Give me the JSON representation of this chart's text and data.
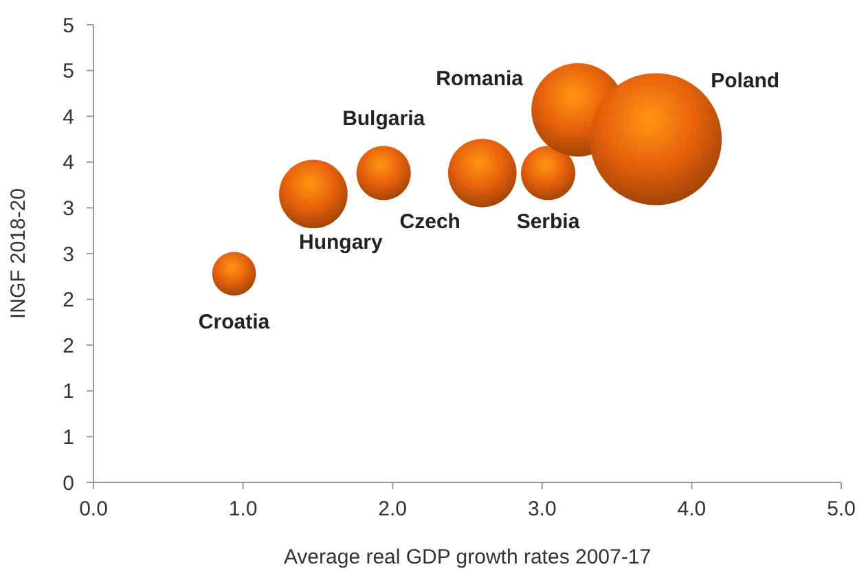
{
  "chart_data": {
    "type": "bubble",
    "xlabel": "Average real GDP growth rates 2007-17",
    "ylabel": "INGF 2018-20",
    "xlim": [
      0,
      5
    ],
    "xticks": [
      {
        "value": 0,
        "label": "0.0"
      },
      {
        "value": 1,
        "label": "1.0"
      },
      {
        "value": 2,
        "label": "2.0"
      },
      {
        "value": 3,
        "label": "3.0"
      },
      {
        "value": 4,
        "label": "4.0"
      },
      {
        "value": 5,
        "label": "5.0"
      }
    ],
    "ylim": [
      0,
      5
    ],
    "yticks": [
      0,
      {
        "value": 0.5,
        "label": "1"
      },
      1,
      {
        "value": 1.5,
        "label": "2"
      },
      2,
      {
        "value": 2.5,
        "label": "3"
      },
      3,
      {
        "value": 3.5,
        "label": "4"
      },
      4,
      {
        "value": 4.5,
        "label": "5"
      },
      5
    ],
    "grid": false,
    "series": [
      {
        "name": "Croatia",
        "color": "#e8620c",
        "x": [
          0.94
        ],
        "values": [
          2.28
        ],
        "sizes": [
          0.11
        ]
      },
      {
        "name": "Hungary",
        "color": "#e8620c",
        "x": [
          1.47
        ],
        "values": [
          3.15
        ],
        "sizes": [
          0.27
        ]
      },
      {
        "name": "Bulgaria",
        "color": "#e8620c",
        "x": [
          1.94
        ],
        "values": [
          3.38
        ],
        "sizes": [
          0.17
        ]
      },
      {
        "name": "Czech",
        "color": "#e8620c",
        "x": [
          2.6
        ],
        "values": [
          3.38
        ],
        "sizes": [
          0.27
        ]
      },
      {
        "name": "Serbia",
        "color": "#e8620c",
        "x": [
          3.04
        ],
        "values": [
          3.38
        ],
        "sizes": [
          0.17
        ]
      },
      {
        "name": "Romania",
        "color": "#e8620c",
        "x": [
          3.24
        ],
        "values": [
          4.07
        ],
        "sizes": [
          0.5
        ]
      },
      {
        "name": "Poland",
        "color": "#e8620c",
        "x": [
          3.76
        ],
        "values": [
          3.75
        ],
        "sizes": [
          1
        ]
      }
    ]
  }
}
